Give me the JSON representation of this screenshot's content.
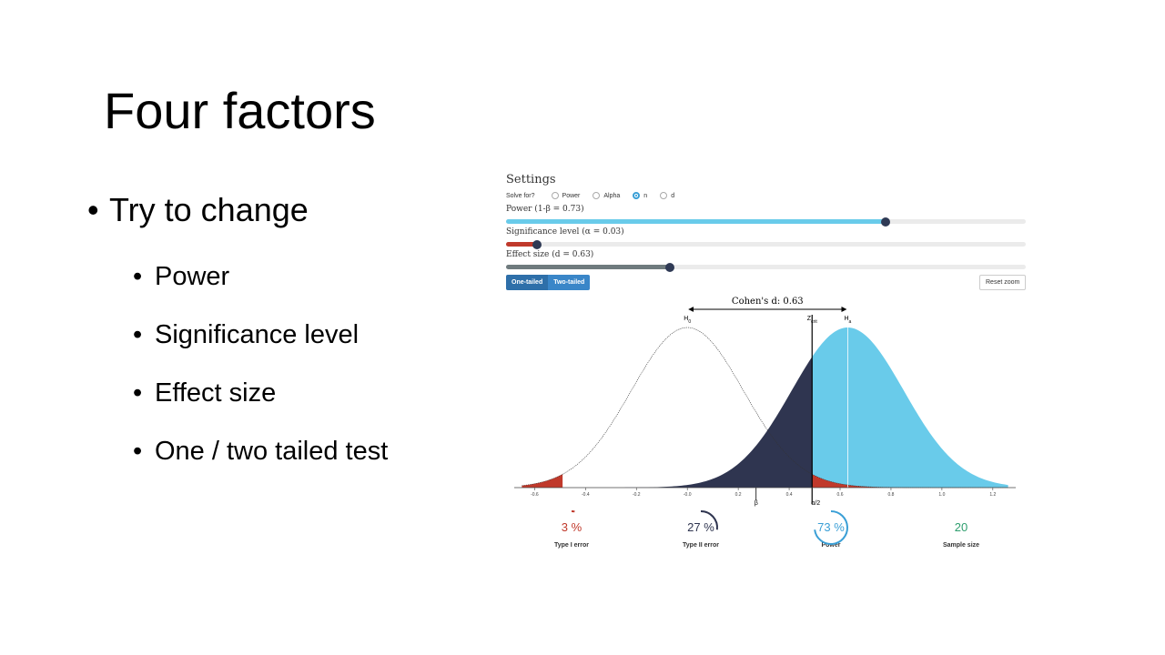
{
  "slide": {
    "title": "Four factors",
    "bullet_main": "Try to change",
    "bullets": [
      "Power",
      "Significance level",
      "Effect size",
      "One / two tailed test"
    ],
    "bullet_glyph": "•"
  },
  "settings": {
    "title": "Settings",
    "solve_for_label": "Solve for?",
    "options": [
      "Power",
      "Alpha",
      "n",
      "d"
    ],
    "selected_option": "n",
    "power_label": "Power (1-β = 0.73)",
    "power_value": 0.73,
    "alpha_label": "Significance level (α = 0.03)",
    "alpha_value": 0.03,
    "effect_label": "Effect size (d = 0.63)",
    "effect_value": 0.63,
    "tail_buttons": [
      "One-tailed",
      "Two-tailed"
    ],
    "reset_label": "Reset zoom"
  },
  "chart_data": {
    "type": "area",
    "annotation": "Cohen's d: 0.63",
    "h0_label": "H",
    "h0_sub": "0",
    "ha_label": "H",
    "ha_sub": "a",
    "zcrit_label": "Z",
    "zcrit_sub": "crit",
    "beta_label": "β",
    "alpha_half_label": "α/2",
    "h0_mean": 0.0,
    "ha_mean": 0.63,
    "sd": 0.22,
    "z_crit": 0.49,
    "x_ticks": [
      "-0.6",
      "-0.4",
      "-0.2",
      "-0.0",
      "0.2",
      "0.4",
      "0.6",
      "0.8",
      "1.0",
      "1.2"
    ],
    "xlim": [
      -0.68,
      1.29
    ],
    "colors": {
      "power": "#69cbea",
      "beta": "#2f3550",
      "alpha": "#c0392b"
    }
  },
  "stats": [
    {
      "value": "3 %",
      "label": "Type I error",
      "color": "#c0392b"
    },
    {
      "value": "27 %",
      "label": "Type II error",
      "color": "#2f3550"
    },
    {
      "value": "73 %",
      "label": "Power",
      "color": "#3a9fd6"
    },
    {
      "value": "20",
      "label": "Sample size",
      "color": "#2e9e6e"
    }
  ]
}
